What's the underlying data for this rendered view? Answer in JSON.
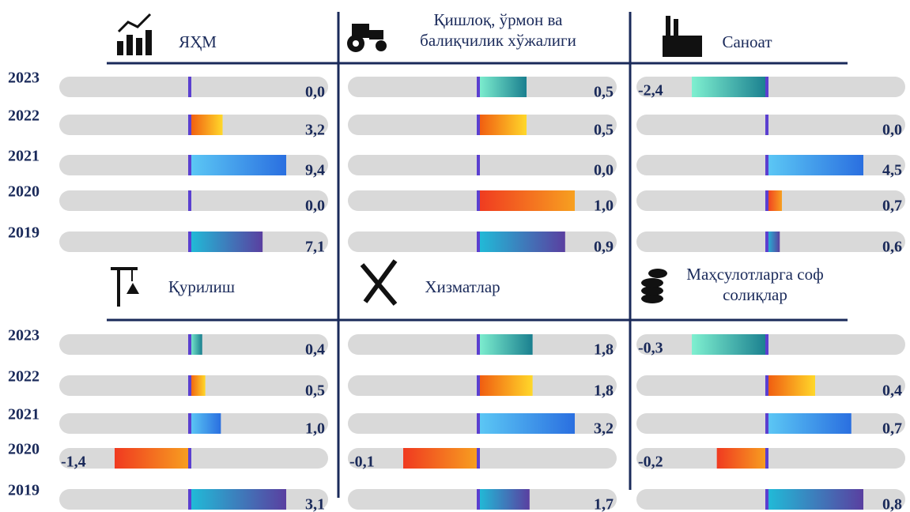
{
  "chart_data": [
    {
      "type": "bar",
      "title": "ЯҲМ",
      "categories": [
        "2023",
        "2022",
        "2021",
        "2020",
        "2019"
      ],
      "values": [
        0,
        3.2,
        9.4,
        0,
        7.1
      ],
      "value_labels": [
        "0,0",
        "3,2",
        "9,4",
        "0,0",
        "7,1"
      ],
      "colors": [
        [
          "#7ff0d0",
          "#1a7f8f"
        ],
        [
          "#f05a10",
          "#ffd82a"
        ],
        [
          "#5cc8f5",
          "#2a6fe0"
        ],
        [
          "#f03a20",
          "#f7a020"
        ],
        [
          "#20bcd8",
          "#5a3fa0"
        ]
      ]
    },
    {
      "type": "bar",
      "title": "Қишлоқ, ўрмон ва балиқчилик хўжалиги",
      "values": [
        0.5,
        0.5,
        0,
        1.0,
        0.9
      ],
      "value_labels": [
        "0,5",
        "0,5",
        "0,0",
        "1,0",
        "0,9"
      ],
      "colors": [
        [
          "#7ff0d0",
          "#1a7f8f"
        ],
        [
          "#f05a10",
          "#ffd82a"
        ],
        [
          "#5cc8f5",
          "#2a6fe0"
        ],
        [
          "#f03a20",
          "#f7a020"
        ],
        [
          "#20bcd8",
          "#5a3fa0"
        ]
      ]
    },
    {
      "type": "bar",
      "title": "Саноат",
      "values": [
        -2.4,
        0,
        4.5,
        0.7,
        0.6
      ],
      "value_labels": [
        "-2,4",
        "0,0",
        "4,5",
        "0,7",
        "0,6"
      ],
      "colors": [
        [
          "#7ff0d0",
          "#1a7f8f"
        ],
        [
          "#f05a10",
          "#ffd82a"
        ],
        [
          "#5cc8f5",
          "#2a6fe0"
        ],
        [
          "#f03a20",
          "#f7a020"
        ],
        [
          "#20bcd8",
          "#5a3fa0"
        ]
      ]
    },
    {
      "type": "bar",
      "title": "Қурилиш",
      "categories": [
        "2023",
        "2022",
        "2021",
        "2020",
        "2019"
      ],
      "values": [
        0.4,
        0.5,
        1.0,
        -1.4,
        3.1
      ],
      "value_labels": [
        "0,4",
        "0,5",
        "1,0",
        "-1,4",
        "3,1"
      ],
      "colors": [
        [
          "#7ff0d0",
          "#1a7f8f"
        ],
        [
          "#f05a10",
          "#ffd82a"
        ],
        [
          "#5cc8f5",
          "#2a6fe0"
        ],
        [
          "#f03a20",
          "#f7a020"
        ],
        [
          "#20bcd8",
          "#5a3fa0"
        ]
      ]
    },
    {
      "type": "bar",
      "title": "Хизматлар",
      "values": [
        1.8,
        1.8,
        3.2,
        -0.1,
        1.7
      ],
      "value_labels": [
        "1,8",
        "1,8",
        "3,2",
        "-0,1",
        "1,7"
      ],
      "colors": [
        [
          "#7ff0d0",
          "#1a7f8f"
        ],
        [
          "#f05a10",
          "#ffd82a"
        ],
        [
          "#5cc8f5",
          "#2a6fe0"
        ],
        [
          "#f03a20",
          "#f7a020"
        ],
        [
          "#20bcd8",
          "#5a3fa0"
        ]
      ]
    },
    {
      "type": "bar",
      "title": "Маҳсулотларга соф солиқлар",
      "values": [
        -0.3,
        0.4,
        0.7,
        -0.2,
        0.8
      ],
      "value_labels": [
        "-0,3",
        "0,4",
        "0,7",
        "-0,2",
        "0,8"
      ],
      "colors": [
        [
          "#7ff0d0",
          "#1a7f8f"
        ],
        [
          "#f05a10",
          "#ffd82a"
        ],
        [
          "#5cc8f5",
          "#2a6fe0"
        ],
        [
          "#f03a20",
          "#f7a020"
        ],
        [
          "#20bcd8",
          "#5a3fa0"
        ]
      ]
    }
  ]
}
